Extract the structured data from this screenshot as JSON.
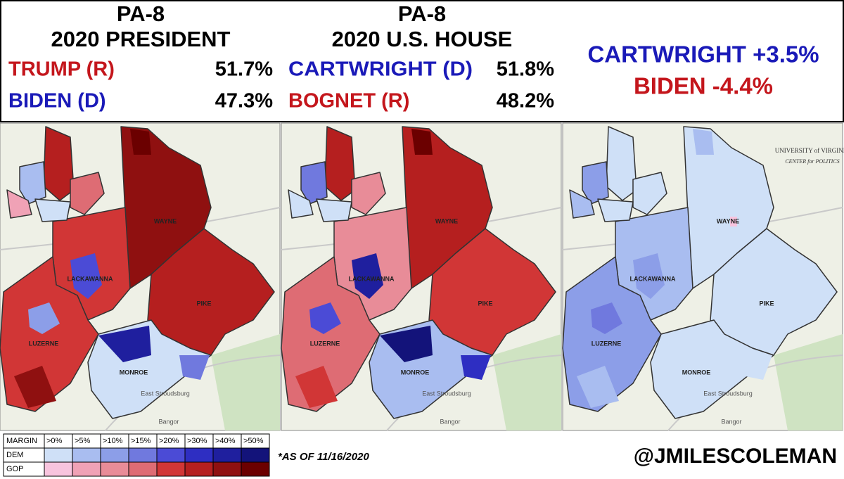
{
  "header": {
    "panels": [
      {
        "title": "PA-8",
        "subtitle": "2020 PRESIDENT",
        "rows": [
          {
            "name": "TRUMP (R)",
            "pct": "51.7%"
          },
          {
            "name": "BIDEN (D)",
            "pct": "47.3%"
          }
        ]
      },
      {
        "title": "PA-8",
        "subtitle": "2020 U.S. HOUSE",
        "rows": [
          {
            "name": "CARTWRIGHT (D)",
            "pct": "51.8%"
          },
          {
            "name": "BOGNET (R)",
            "pct": "48.2%"
          }
        ]
      }
    ],
    "overperformance": [
      "CARTWRIGHT +3.5%",
      "BIDEN -4.4%"
    ]
  },
  "maps": {
    "labels": [
      "WAYNE",
      "LACKAWANNA",
      "PIKE",
      "LUZERNE",
      "MONROE",
      "East Stroudsburg",
      "Bangor"
    ],
    "logo": [
      "UNIVERSITY of VIRGINIA",
      "CENTER for POLITICS"
    ]
  },
  "legend": {
    "header": "MARGIN",
    "bins": [
      ">0%",
      ">5%",
      ">10%",
      ">15%",
      ">20%",
      ">30%",
      ">40%",
      ">50%"
    ],
    "rows": [
      "DEM",
      "GOP"
    ]
  },
  "footnote": "*AS OF 11/16/2020",
  "credit": "@JMILESCOLEMAN"
}
